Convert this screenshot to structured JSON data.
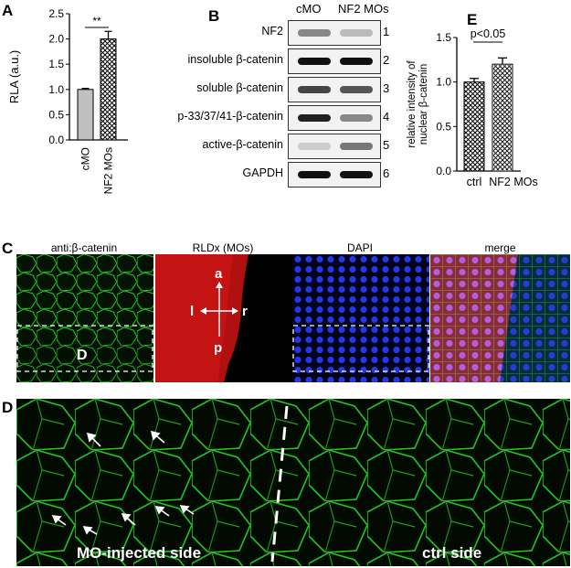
{
  "panel_letters": {
    "a": "A",
    "b": "B",
    "c": "C",
    "d": "D",
    "e": "E"
  },
  "chart_a": {
    "type": "bar",
    "ylabel": "RLA (a.u.)",
    "ylim": [
      0,
      2.5
    ],
    "yticks": [
      "0.0",
      "0.5",
      "1.0",
      "1.5",
      "2.0",
      "2.5"
    ],
    "categories": [
      "cMO",
      "NF2 MOs"
    ],
    "values": [
      1.0,
      2.0
    ],
    "errors": [
      0.02,
      0.15
    ],
    "significance": "**"
  },
  "blot": {
    "columns": [
      "cMO",
      "NF2 MOs"
    ],
    "rows": [
      {
        "label": "NF2",
        "num": "1"
      },
      {
        "label": "insoluble β-catenin",
        "num": "2"
      },
      {
        "label": "soluble β-catenin",
        "num": "3"
      },
      {
        "label": "p-33/37/41-β-catenin",
        "num": "4"
      },
      {
        "label": "active-β-catenin",
        "num": "5"
      },
      {
        "label": "GAPDH",
        "num": "6"
      }
    ]
  },
  "chart_e": {
    "type": "bar",
    "ylabel_line1": "relative intensity of",
    "ylabel_line2": "nuclear β-catenin",
    "ylim": [
      0,
      1.5
    ],
    "yticks": [
      "0.0",
      "0.5",
      "1.0",
      "1.5"
    ],
    "categories": [
      "ctrl",
      "NF2 MOs"
    ],
    "values": [
      1.0,
      1.2
    ],
    "errors": [
      0.04,
      0.07
    ],
    "significance": "p<0.05"
  },
  "panel_c": {
    "titles": [
      "anti:β-catenin",
      "RLDx (MOs)",
      "DAPI",
      "merge"
    ],
    "inset_label": "D",
    "axes": {
      "a": "a",
      "p": "p",
      "l": "l",
      "r": "r"
    }
  },
  "panel_d": {
    "left_label": "MO-injected side",
    "right_label": "ctrl side"
  },
  "colors": {
    "green": "#1fd21f",
    "red": "#d01010",
    "blue": "#2030e0",
    "bg_dark": "#000000"
  }
}
